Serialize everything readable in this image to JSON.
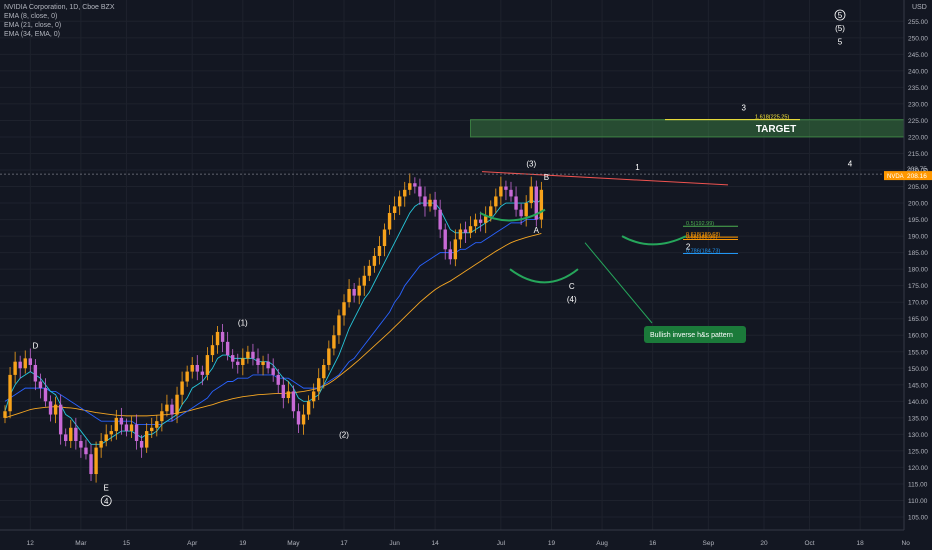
{
  "legend": {
    "title": "NVIDIA Corporation, 1D, Cboe BZX",
    "ema8": "EMA (8, close, 0)",
    "ema21": "EMA (21, close, 0)",
    "ema34": "EMA (34, EMA, 0)"
  },
  "chart_data": {
    "type": "candlestick",
    "title": "NVIDIA Corporation, 1D, Cboe BZX",
    "currency": "USD",
    "ylim": [
      105,
      256
    ],
    "yticks": [
      105,
      110,
      115,
      120,
      125,
      130,
      135,
      140,
      145,
      150,
      155,
      160,
      165,
      170,
      175,
      180,
      185,
      190,
      195,
      200,
      205,
      210,
      215,
      220,
      225,
      230,
      235,
      240,
      245,
      250,
      255
    ],
    "xlim": [
      0,
      178
    ],
    "xticks": [
      {
        "x": 5,
        "label": "12"
      },
      {
        "x": 15,
        "label": "Mar"
      },
      {
        "x": 24,
        "label": "15"
      },
      {
        "x": 37,
        "label": "Apr"
      },
      {
        "x": 47,
        "label": "19"
      },
      {
        "x": 57,
        "label": "May"
      },
      {
        "x": 67,
        "label": "17"
      },
      {
        "x": 77,
        "label": "Jun"
      },
      {
        "x": 85,
        "label": "14"
      },
      {
        "x": 98,
        "label": "Jul"
      },
      {
        "x": 108,
        "label": "19"
      },
      {
        "x": 118,
        "label": "Aug"
      },
      {
        "x": 128,
        "label": "16"
      },
      {
        "x": 139,
        "label": "Sep"
      },
      {
        "x": 150,
        "label": "20"
      },
      {
        "x": 159,
        "label": "Oct"
      },
      {
        "x": 169,
        "label": "18"
      },
      {
        "x": 178,
        "label": "No"
      }
    ],
    "closes": [
      137,
      148,
      152,
      150,
      153,
      151,
      146,
      144,
      140,
      136,
      139,
      130,
      128,
      132,
      128,
      126,
      124,
      118,
      126,
      128,
      130,
      131,
      135,
      133,
      131,
      133,
      128,
      126,
      131,
      132,
      134,
      137,
      139,
      136,
      142,
      146,
      149,
      151,
      149,
      148,
      154,
      157,
      161,
      158,
      154,
      152,
      151,
      153,
      155,
      153,
      151,
      152,
      150,
      148,
      145,
      141,
      143,
      137,
      133,
      136,
      140,
      143,
      147,
      151,
      156,
      160,
      166,
      170,
      174,
      172,
      175,
      178,
      181,
      184,
      187,
      192,
      197,
      199,
      202,
      204,
      206,
      205,
      202,
      199,
      201,
      198,
      192,
      186,
      183,
      189,
      192,
      191,
      193,
      195,
      194,
      196,
      199,
      202,
      205,
      204,
      202,
      198,
      196,
      200,
      205,
      195,
      204
    ],
    "ema8": [
      137,
      142,
      145,
      147,
      148,
      149,
      148,
      147,
      145,
      143,
      142,
      139,
      136,
      135,
      133,
      131,
      129,
      127,
      127,
      127,
      128,
      129,
      130,
      131,
      131,
      131,
      130,
      129,
      130,
      130,
      131,
      133,
      134,
      135,
      136,
      139,
      141,
      144,
      145,
      146,
      148,
      150,
      153,
      154,
      154,
      153,
      153,
      153,
      153,
      153,
      152,
      152,
      152,
      151,
      149,
      147,
      146,
      144,
      141,
      140,
      140,
      141,
      142,
      145,
      148,
      151,
      154,
      158,
      162,
      165,
      168,
      171,
      173,
      176,
      179,
      182,
      185,
      188,
      191,
      194,
      197,
      199,
      200,
      200,
      200,
      200,
      198,
      195,
      192,
      191,
      191,
      191,
      191,
      192,
      193,
      194,
      195,
      197,
      199,
      200,
      200,
      200,
      200,
      200,
      201,
      200,
      201
    ],
    "ema21": [
      140,
      141,
      142,
      143,
      144,
      144,
      144,
      144,
      144,
      143,
      143,
      142,
      141,
      140,
      139,
      138,
      137,
      136,
      135,
      134,
      134,
      134,
      134,
      134,
      134,
      134,
      133,
      133,
      133,
      133,
      133,
      133,
      134,
      134,
      135,
      136,
      137,
      138,
      139,
      140,
      141,
      143,
      144,
      145,
      146,
      146,
      147,
      147,
      147,
      148,
      148,
      148,
      148,
      148,
      147,
      147,
      147,
      146,
      145,
      144,
      144,
      144,
      144,
      145,
      146,
      147,
      148,
      150,
      152,
      153,
      155,
      157,
      159,
      161,
      163,
      165,
      167,
      170,
      172,
      175,
      177,
      179,
      181,
      182,
      183,
      184,
      185,
      185,
      185,
      185,
      186,
      186,
      187,
      188,
      188,
      189,
      190,
      191,
      192,
      193,
      194,
      194,
      194,
      195,
      195,
      195,
      196
    ],
    "ema34": [
      135,
      135.5,
      136,
      136.5,
      137,
      137.5,
      137.8,
      138,
      138.2,
      138.3,
      138.4,
      138.3,
      138.1,
      138,
      137.8,
      137.5,
      137.2,
      136.9,
      136.6,
      136.4,
      136.2,
      136,
      135.8,
      135.7,
      135.6,
      135.6,
      135.6,
      135.6,
      135.6,
      135.7,
      135.8,
      135.9,
      136,
      136.2,
      136.4,
      136.7,
      137,
      137.4,
      137.8,
      138.2,
      138.6,
      139,
      139.5,
      140,
      140.4,
      140.8,
      141.1,
      141.4,
      141.6,
      141.8,
      142,
      142.1,
      142.2,
      142.3,
      142.4,
      142.4,
      142.5,
      142.6,
      142.8,
      143,
      143.3,
      143.6,
      144,
      144.6,
      145.4,
      146.4,
      147.6,
      148.8,
      150,
      151.3,
      152.6,
      154,
      155.4,
      156.8,
      158.2,
      159.6,
      161,
      162.5,
      164,
      165.5,
      167,
      168.5,
      170,
      171.3,
      172.6,
      173.8,
      174.8,
      175.6,
      176.4,
      177.4,
      178.4,
      179.4,
      180.4,
      181.4,
      182.4,
      183.4,
      184.4,
      185.4,
      186.3,
      187.2,
      188,
      188.6,
      189.1,
      189.6,
      190,
      190.4,
      190.8
    ],
    "price_label": "NVDA",
    "price_value": "208.16",
    "price_value_y": 208.16,
    "high_value": "208.75",
    "high_value_y": 208.75,
    "target": {
      "label": "TARGET",
      "y_top": 225.25,
      "y_bottom": 220,
      "x_start": 92
    },
    "fibs": [
      {
        "label": "1.618(225.25)",
        "y": 225.25,
        "color": "#ffeb3b"
      },
      {
        "label": "0.5(192.99)",
        "y": 192.99,
        "color": "#4caf50"
      },
      {
        "label": "0.618(189.68)",
        "y": 189.68,
        "color": "#ff9800"
      },
      {
        "label": "0.65(188.96)",
        "y": 188.96,
        "color": "#ff9800"
      },
      {
        "label": "0.786(184.73)",
        "y": 184.73,
        "color": "#2196f3"
      }
    ],
    "wave_labels": [
      {
        "text": "D",
        "x": 6,
        "y": 156
      },
      {
        "text": "E",
        "x": 20,
        "y": 113
      },
      {
        "text": "4",
        "x": 20,
        "y": 109,
        "circled": true
      },
      {
        "text": "(1)",
        "x": 47,
        "y": 163
      },
      {
        "text": "(2)",
        "x": 67,
        "y": 129
      },
      {
        "text": "(3)",
        "x": 104,
        "y": 211
      },
      {
        "text": "B",
        "x": 107,
        "y": 207
      },
      {
        "text": "A",
        "x": 105,
        "y": 191
      },
      {
        "text": "C",
        "x": 112,
        "y": 174
      },
      {
        "text": "(4)",
        "x": 112,
        "y": 170
      },
      {
        "text": "1",
        "x": 125,
        "y": 210
      },
      {
        "text": "2",
        "x": 135,
        "y": 186
      },
      {
        "text": "3",
        "x": 146,
        "y": 228
      },
      {
        "text": "4",
        "x": 167,
        "y": 211
      },
      {
        "text": "5",
        "x": 173,
        "y": 256,
        "circled": true
      },
      {
        "text": "(5)",
        "x": 173,
        "y": 252
      },
      {
        "text": "5",
        "x": 173,
        "y": 248
      }
    ],
    "annotation": "Bullish inverse h&s pattern"
  }
}
